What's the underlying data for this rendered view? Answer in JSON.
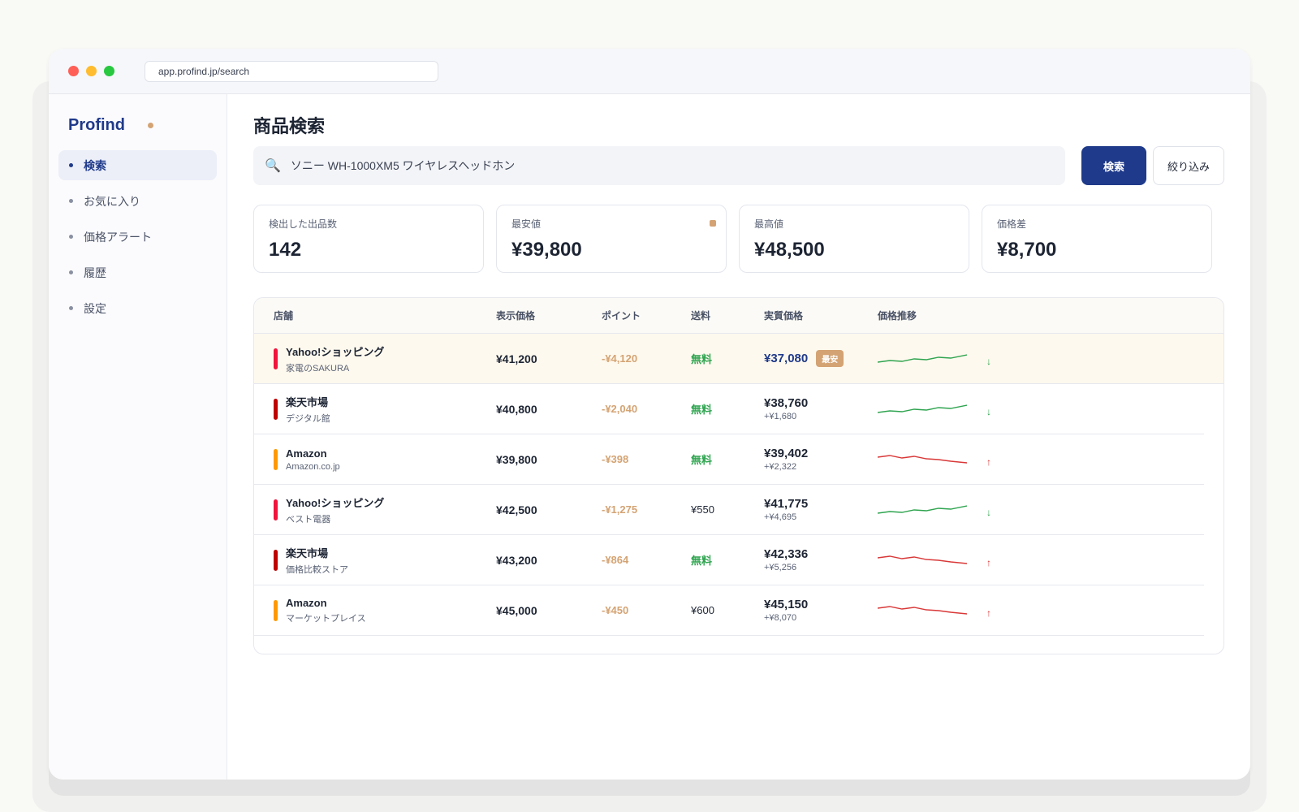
{
  "browser": {
    "url": "app.profind.jp/search"
  },
  "sidebar": {
    "brand": "Profind",
    "items": [
      {
        "label": "検索",
        "active": true
      },
      {
        "label": "お気に入り",
        "active": false
      },
      {
        "label": "価格アラート",
        "active": false
      },
      {
        "label": "履歴",
        "active": false
      },
      {
        "label": "設定",
        "active": false
      }
    ]
  },
  "main": {
    "title": "商品検索",
    "search": {
      "value": "ソニー WH-1000XM5 ワイヤレスヘッドホン",
      "icon": "search-icon"
    },
    "search_button": "検索",
    "filter_button": "絞り込み",
    "stats": [
      {
        "label": "検出した出品数",
        "value": "142"
      },
      {
        "label": "最安値",
        "value": "¥39,800"
      },
      {
        "label": "最高値",
        "value": "¥48,500"
      },
      {
        "label": "価格差",
        "value": "¥8,700"
      }
    ],
    "table": {
      "headers": {
        "shop": "店舗",
        "price": "表示価格",
        "point": "ポイント",
        "ship": "送料",
        "real": "実質価格",
        "trend": "価格推移"
      },
      "best_badge": "最安",
      "rows": [
        {
          "shop": "Yahoo!ショッピング",
          "sub": "家電のSAKURA",
          "color": "#f0143c",
          "price": "¥41,200",
          "point": "-¥4,120",
          "ship": "無料",
          "ship_free": true,
          "real": "¥37,080",
          "diff": "",
          "best": true,
          "trend": "down"
        },
        {
          "shop": "楽天市場",
          "sub": "デジタル館",
          "color": "#bf0000",
          "price": "¥40,800",
          "point": "-¥2,040",
          "ship": "無料",
          "ship_free": true,
          "real": "¥38,760",
          "diff": "+¥1,680",
          "best": false,
          "trend": "down"
        },
        {
          "shop": "Amazon",
          "sub": "Amazon.co.jp",
          "color": "#ff9900",
          "price": "¥39,800",
          "point": "-¥398",
          "ship": "無料",
          "ship_free": true,
          "real": "¥39,402",
          "diff": "+¥2,322",
          "best": false,
          "trend": "up"
        },
        {
          "shop": "Yahoo!ショッピング",
          "sub": "ベスト電器",
          "color": "#f0143c",
          "price": "¥42,500",
          "point": "-¥1,275",
          "ship": "¥550",
          "ship_free": false,
          "real": "¥41,775",
          "diff": "+¥4,695",
          "best": false,
          "trend": "down"
        },
        {
          "shop": "楽天市場",
          "sub": "価格比較ストア",
          "color": "#bf0000",
          "price": "¥43,200",
          "point": "-¥864",
          "ship": "無料",
          "ship_free": true,
          "real": "¥42,336",
          "diff": "+¥5,256",
          "best": false,
          "trend": "up"
        },
        {
          "shop": "Amazon",
          "sub": "マーケットプレイス",
          "color": "#ff9900",
          "price": "¥45,000",
          "point": "-¥450",
          "ship": "¥600",
          "ship_free": false,
          "real": "¥45,150",
          "diff": "+¥8,070",
          "best": false,
          "trend": "up"
        }
      ]
    }
  },
  "colors": {
    "accent": "#1f3a8a",
    "highlight": "#d4a373",
    "trend_down": "#2ea44f",
    "trend_up": "#d93838"
  }
}
